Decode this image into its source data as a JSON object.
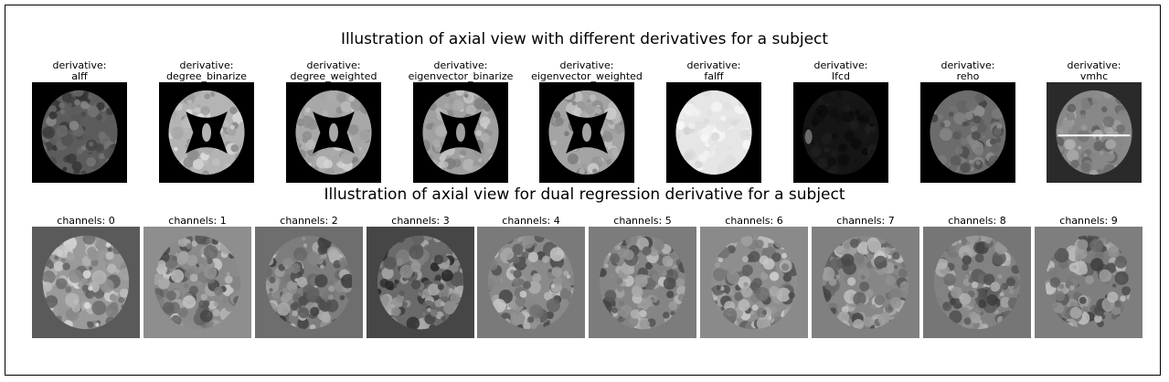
{
  "figure": {
    "title_derivatives": "Illustration of axial view with different derivatives for a subject",
    "title_dual_regression": "Illustration of axial view for dual regression derivative for a subject"
  },
  "derivatives": [
    {
      "label": "derivative:\nalff",
      "style": "soft",
      "bg": "#000000",
      "brain": "#5c5c5c"
    },
    {
      "label": "derivative:\ndegree_binarize",
      "style": "ring",
      "bg": "#000000",
      "brain": "#b4b4b4"
    },
    {
      "label": "derivative:\ndegree_weighted",
      "style": "ring",
      "bg": "#000000",
      "brain": "#a8a8a8"
    },
    {
      "label": "derivative:\neigenvector_binarize",
      "style": "ring",
      "bg": "#000000",
      "brain": "#a0a0a0"
    },
    {
      "label": "derivative:\neigenvector_weighted",
      "style": "ring",
      "bg": "#000000",
      "brain": "#a4a4a4"
    },
    {
      "label": "derivative:\nfalff",
      "style": "bright",
      "bg": "#000000",
      "brain": "#e6e6e6"
    },
    {
      "label": "derivative:\nlfcd",
      "style": "dim",
      "bg": "#000000",
      "brain": "#151515"
    },
    {
      "label": "derivative:\nreho",
      "style": "soft",
      "bg": "#000000",
      "brain": "#6c6c6c"
    },
    {
      "label": "derivative:\nvmhc",
      "style": "vmhc",
      "bg": "#2a2a2a",
      "brain": "#888888"
    }
  ],
  "channels": [
    {
      "label": "channels: 0",
      "bg": "#5a5a5a",
      "brain": "#9a9a9a"
    },
    {
      "label": "channels: 1",
      "bg": "#8e8e8e",
      "brain": "#8a8a8a"
    },
    {
      "label": "channels: 2",
      "bg": "#6e6e6e",
      "brain": "#7d7d7d"
    },
    {
      "label": "channels: 3",
      "bg": "#464646",
      "brain": "#6a6a6a"
    },
    {
      "label": "channels: 4",
      "bg": "#7a7a7a",
      "brain": "#8a8a8a"
    },
    {
      "label": "channels: 5",
      "bg": "#7c7c7c",
      "brain": "#858585"
    },
    {
      "label": "channels: 6",
      "bg": "#8a8a8a",
      "brain": "#8e8e8e"
    },
    {
      "label": "channels: 7",
      "bg": "#808080",
      "brain": "#878787"
    },
    {
      "label": "channels: 8",
      "bg": "#767676",
      "brain": "#828282"
    },
    {
      "label": "channels: 9",
      "bg": "#7e7e7e",
      "brain": "#7e7e7e"
    }
  ]
}
